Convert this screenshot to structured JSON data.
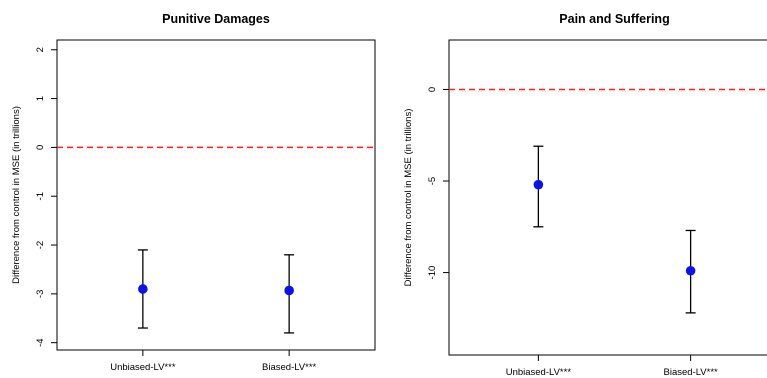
{
  "chart_data": [
    {
      "type": "scatter",
      "title": "Punitive Damages",
      "ylabel": "Difference from control in MSE (in trillions)",
      "categories": [
        "Unbiased-LV***",
        "Biased-LV***"
      ],
      "estimates": [
        -2.9,
        -2.93
      ],
      "ci_lower": [
        -3.7,
        -3.8
      ],
      "ci_upper": [
        -2.1,
        -2.2
      ],
      "yticks": [
        2,
        1,
        0,
        -1,
        -2,
        -3,
        -4
      ],
      "ytick_labels": [
        "2",
        "1",
        "0",
        "-1",
        "-2",
        "-3",
        "-4"
      ],
      "ylim": [
        -4.15,
        2.2
      ],
      "reference_line": 0,
      "grid": false
    },
    {
      "type": "scatter",
      "title": "Pain and Suffering",
      "ylabel": "Difference from control in MSE (in trillions)",
      "categories": [
        "Unbiased-LV***",
        "Biased-LV***"
      ],
      "estimates": [
        -5.2,
        -9.9
      ],
      "ci_lower": [
        -7.5,
        -12.2
      ],
      "ci_upper": [
        -3.1,
        -7.7
      ],
      "yticks": [
        0,
        -5,
        -10
      ],
      "ytick_labels": [
        "0",
        "-5",
        "-10"
      ],
      "ylim": [
        -14.5,
        2.7
      ],
      "reference_line": 0,
      "grid": false
    }
  ],
  "colors": {
    "point": "#0a14e6",
    "reference_line": "#ff2020",
    "axis": "#000000"
  }
}
